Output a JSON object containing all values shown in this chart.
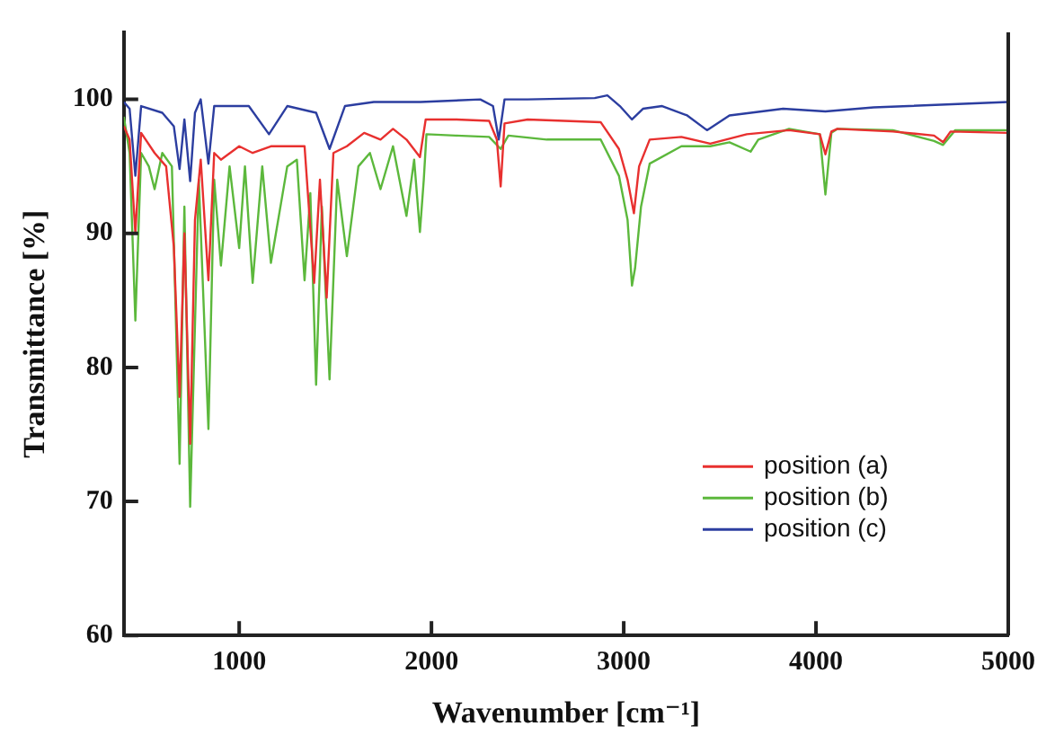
{
  "chart_data": {
    "type": "line",
    "xlabel": "Wavenumber [cm⁻¹]",
    "ylabel": "Transmittance [%]",
    "xlim": [
      400,
      5000
    ],
    "xticks": [
      1000,
      2000,
      3000,
      4000,
      5000
    ],
    "ylim": [
      60,
      105
    ],
    "yticks": [
      60,
      70,
      80,
      90,
      100
    ],
    "grid": false,
    "legend": "right",
    "line_style": "solid",
    "series": [
      {
        "name": "position (a)",
        "color": "#e8302f",
        "x": [
          400,
          430,
          460,
          490,
          560,
          620,
          660,
          690,
          715,
          745,
          770,
          800,
          840,
          870,
          905,
          1000,
          1070,
          1165,
          1250,
          1340,
          1390,
          1420,
          1455,
          1490,
          1560,
          1650,
          1735,
          1800,
          1870,
          1940,
          1970,
          2125,
          2300,
          2340,
          2360,
          2380,
          2500,
          2880,
          2975,
          3020,
          3053,
          3080,
          3135,
          3300,
          3450,
          3640,
          3860,
          4020,
          4049,
          4080,
          4111,
          4400,
          4614,
          4661,
          4700,
          5000
        ],
        "values": [
          98,
          97,
          90,
          97.5,
          96,
          95,
          89,
          77.8,
          90,
          74.3,
          91,
          95.5,
          86.5,
          96,
          95.5,
          96.5,
          96,
          96.5,
          96.5,
          96.5,
          86.3,
          94,
          85.2,
          96,
          96.5,
          97.5,
          97,
          97.8,
          97,
          95.7,
          98.5,
          98.5,
          98.4,
          97,
          93.5,
          98.2,
          98.5,
          98.3,
          96.3,
          94,
          91.5,
          95,
          97,
          97.2,
          96.7,
          97.4,
          97.7,
          97.4,
          95.9,
          97.6,
          97.8,
          97.6,
          97.3,
          96.8,
          97.6,
          97.5
        ]
      },
      {
        "name": "position (b)",
        "color": "#5cb83c",
        "x": [
          400,
          430,
          460,
          490,
          530,
          560,
          600,
          650,
          690,
          715,
          745,
          790,
          840,
          870,
          905,
          950,
          1000,
          1030,
          1070,
          1120,
          1165,
          1250,
          1300,
          1340,
          1370,
          1400,
          1430,
          1470,
          1510,
          1560,
          1620,
          1680,
          1735,
          1800,
          1870,
          1910,
          1940,
          1960,
          1974,
          2125,
          2300,
          2360,
          2400,
          2600,
          2880,
          2975,
          3020,
          3043,
          3059,
          3090,
          3135,
          3300,
          3450,
          3550,
          3660,
          3700,
          3860,
          4020,
          4049,
          4080,
          4111,
          4400,
          4614,
          4661,
          4724,
          5000
        ],
        "values": [
          98.7,
          96,
          83.5,
          96,
          95,
          93.3,
          96,
          95,
          72.8,
          92,
          69.6,
          94,
          75.4,
          94,
          87.6,
          95,
          88.9,
          95,
          86.3,
          95,
          87.8,
          95,
          95.5,
          86.5,
          93,
          78.7,
          92,
          79.1,
          94,
          88.3,
          95,
          96,
          93.3,
          96.5,
          91.3,
          95.5,
          90.1,
          94,
          97.4,
          97.3,
          97.2,
          96.3,
          97.3,
          97,
          97,
          94.3,
          91,
          86.1,
          87.4,
          92,
          95.2,
          96.5,
          96.5,
          96.8,
          96.1,
          97,
          97.8,
          97.4,
          92.9,
          97.5,
          97.8,
          97.7,
          96.9,
          96.6,
          97.7,
          97.7
        ]
      },
      {
        "name": "position (c)",
        "color": "#2c3ea0",
        "x": [
          400,
          430,
          460,
          490,
          600,
          660,
          690,
          715,
          745,
          770,
          800,
          840,
          870,
          950,
          1050,
          1155,
          1250,
          1400,
          1470,
          1550,
          1700,
          1943,
          2254,
          2320,
          2350,
          2380,
          2500,
          2849,
          2915,
          2980,
          3043,
          3100,
          3200,
          3330,
          3433,
          3550,
          3829,
          4049,
          4300,
          5000
        ],
        "values": [
          99.8,
          99.3,
          94.3,
          99.5,
          99,
          98,
          94.8,
          98.5,
          93.9,
          99,
          100,
          95.2,
          99.5,
          99.5,
          99.5,
          97.4,
          99.5,
          99,
          96.3,
          99.5,
          99.8,
          99.8,
          100,
          99.5,
          97,
          100,
          100,
          100.1,
          100.3,
          99.5,
          98.5,
          99.3,
          99.5,
          98.8,
          97.7,
          98.8,
          99.3,
          99.1,
          99.4,
          99.8
        ]
      }
    ]
  }
}
